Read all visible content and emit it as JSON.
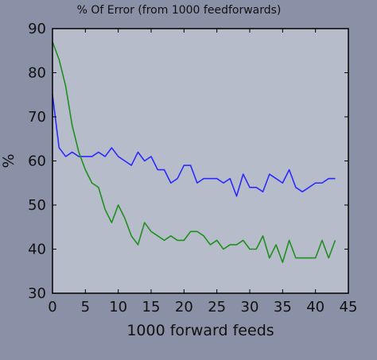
{
  "figure": {
    "background": "#8a90a6",
    "plot_background": "#b7bccb"
  },
  "chart_data": {
    "type": "line",
    "title": "% Of Error (from 1000 feedforwards)",
    "xlabel": "1000 forward feeds",
    "ylabel": "%",
    "xlim": [
      0,
      45
    ],
    "ylim": [
      30,
      90
    ],
    "xticks": [
      0,
      5,
      10,
      15,
      20,
      25,
      30,
      35,
      40,
      45
    ],
    "yticks": [
      30,
      40,
      50,
      60,
      70,
      80,
      90
    ],
    "grid": false,
    "legend": "none",
    "x": [
      0,
      1,
      2,
      3,
      4,
      5,
      6,
      7,
      8,
      9,
      10,
      11,
      12,
      13,
      14,
      15,
      16,
      17,
      18,
      19,
      20,
      21,
      22,
      23,
      24,
      25,
      26,
      27,
      28,
      29,
      30,
      31,
      32,
      33,
      34,
      35,
      36,
      37,
      38,
      39,
      40,
      41,
      42,
      43
    ],
    "series": [
      {
        "color": "#2b2bff",
        "values": [
          75,
          63,
          61,
          62,
          61,
          61,
          61,
          62,
          61,
          63,
          61,
          60,
          59,
          62,
          60,
          61,
          58,
          58,
          55,
          56,
          59,
          59,
          55,
          56,
          56,
          56,
          55,
          56,
          52,
          57,
          54,
          54,
          53,
          57,
          56,
          55,
          58,
          54,
          53,
          54,
          55,
          55,
          56,
          56
        ]
      },
      {
        "color": "#1f8f1f",
        "values": [
          87,
          83,
          77,
          68,
          62,
          58,
          55,
          54,
          49,
          46,
          50,
          47,
          43,
          41,
          46,
          44,
          43,
          42,
          43,
          42,
          42,
          44,
          44,
          43,
          41,
          42,
          40,
          41,
          41,
          42,
          40,
          40,
          43,
          38,
          41,
          37,
          42,
          38,
          38,
          38,
          38,
          42,
          38,
          42
        ]
      }
    ]
  }
}
